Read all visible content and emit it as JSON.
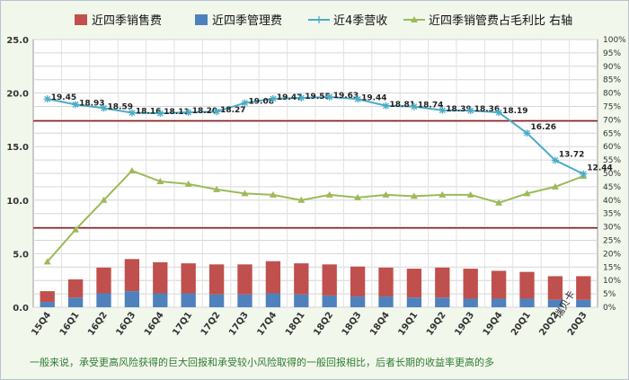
{
  "chart_data": {
    "type": "bar",
    "categories": [
      "15Q4",
      "16Q1",
      "16Q2",
      "16Q3",
      "16Q4",
      "17Q1",
      "17Q2",
      "17Q3",
      "17Q4",
      "18Q1",
      "18Q2",
      "18Q3",
      "18Q4",
      "19Q1",
      "19Q2",
      "19Q3",
      "19Q4",
      "20Q1",
      "20Q2",
      "20Q3"
    ],
    "series": [
      {
        "name": "近四季销售费",
        "kind": "bar",
        "color": "#c0504d",
        "values": [
          1.0,
          1.7,
          2.4,
          3.0,
          2.9,
          2.8,
          2.8,
          2.8,
          3.0,
          2.9,
          2.9,
          2.8,
          2.7,
          2.7,
          2.8,
          2.8,
          2.6,
          2.5,
          2.2,
          2.2
        ]
      },
      {
        "name": "近四季管理费",
        "kind": "bar",
        "color": "#4f81bd",
        "values": [
          0.5,
          0.9,
          1.3,
          1.5,
          1.3,
          1.3,
          1.2,
          1.2,
          1.3,
          1.2,
          1.1,
          1.0,
          1.0,
          0.9,
          0.9,
          0.8,
          0.8,
          0.8,
          0.7,
          0.7
        ]
      },
      {
        "name": "近4季营收",
        "kind": "line",
        "color": "#4bacc6",
        "marker": "star",
        "values": [
          19.45,
          18.93,
          18.59,
          18.16,
          18.11,
          18.2,
          18.27,
          19.08,
          19.47,
          19.55,
          19.63,
          19.44,
          18.81,
          18.74,
          18.39,
          18.36,
          18.19,
          16.26,
          13.72,
          12.44
        ],
        "labels": [
          "19.45",
          "18.93",
          "18.59",
          "18.16",
          "18.11",
          "18.20",
          "18.27",
          "19.08",
          "19.47",
          "19.55",
          "19.63",
          "19.44",
          "18.81",
          "18.74",
          "18.39",
          "18.36",
          "18.19",
          "16.26",
          "13.72",
          "12.44"
        ]
      },
      {
        "name": "近四季销管费占毛利比 右轴",
        "kind": "line",
        "axis": "right",
        "color": "#9bbb59",
        "marker": "triangle",
        "values": [
          17,
          29,
          40,
          51,
          47,
          46,
          44,
          42.5,
          42,
          40,
          42,
          41,
          42,
          41.5,
          42,
          42,
          39,
          42.5,
          45,
          49
        ]
      }
    ],
    "reference_lines": [
      {
        "axis": "left",
        "value": 17.4,
        "color": "#8b1a1a"
      },
      {
        "axis": "left",
        "value": 7.4,
        "color": "#8b1a1a"
      }
    ],
    "ylim": [
      0,
      25
    ],
    "yticks": [
      "0.0",
      "5.0",
      "10.0",
      "15.0",
      "20.0",
      "25.0"
    ],
    "y2lim": [
      0,
      100
    ],
    "y2ticks": [
      "0%",
      "5%",
      "10%",
      "15%",
      "20%",
      "25%",
      "30%",
      "35%",
      "40%",
      "45%",
      "50%",
      "55%",
      "60%",
      "65%",
      "70%",
      "75%",
      "80%",
      "85%",
      "90%",
      "95%",
      "100%"
    ],
    "grid": true,
    "legend_position": "top"
  },
  "brand": "瑞贝卡",
  "footnote": "一般来说，承受更高风险获得的巨大回报和承受较小风险取得的一般回报相比，后者长期的收益率更高的多"
}
